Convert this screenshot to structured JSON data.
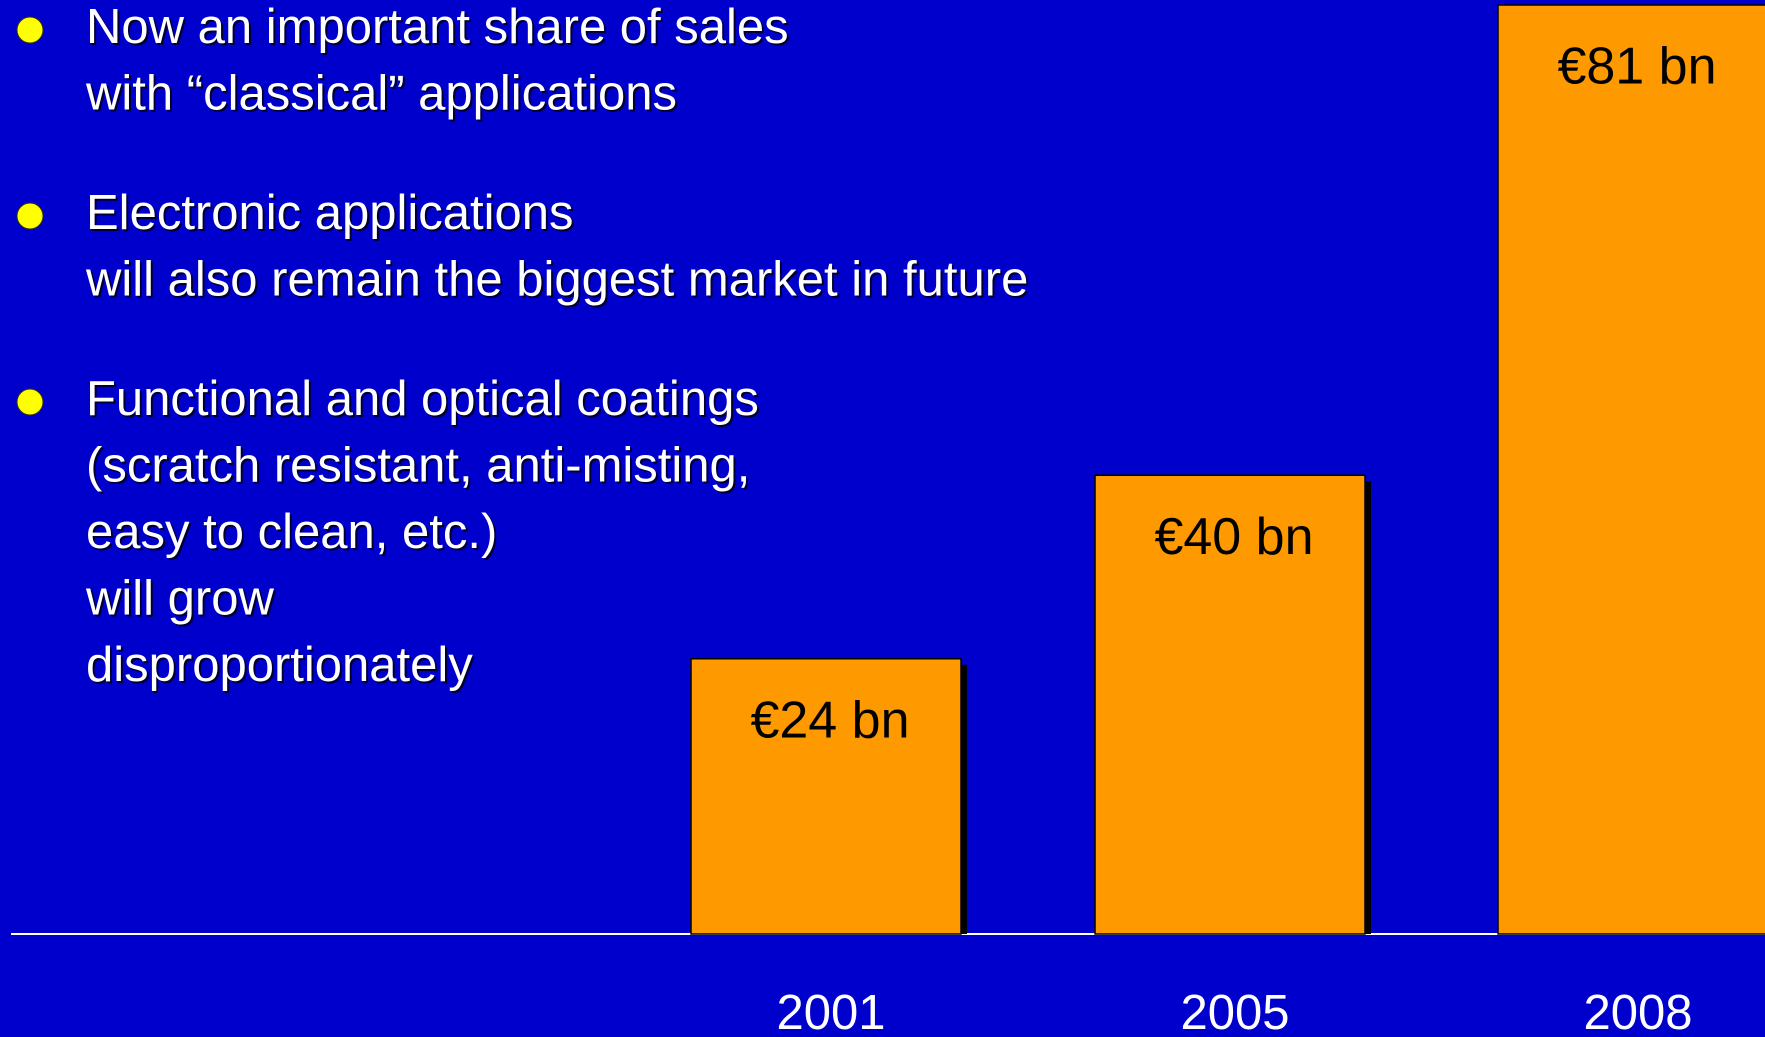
{
  "bullets": [
    {
      "lines": [
        "Now an important share of sales",
        "with “classical” applications"
      ]
    },
    {
      "lines": [
        "Electronic applications",
        "will also remain the biggest market in future"
      ]
    },
    {
      "lines": [
        "Functional and optical coatings",
        "(scratch resistant, anti-misting,",
        "easy to clean, etc.)",
        "will grow",
        "disproportionately"
      ]
    }
  ],
  "chart_data": {
    "type": "bar",
    "categories": [
      "2001",
      "2005",
      "2008"
    ],
    "values": [
      24,
      40,
      81
    ],
    "value_labels": [
      "€24 bn",
      "€40 bn",
      "€81 bn"
    ],
    "color": "#ff9900"
  }
}
